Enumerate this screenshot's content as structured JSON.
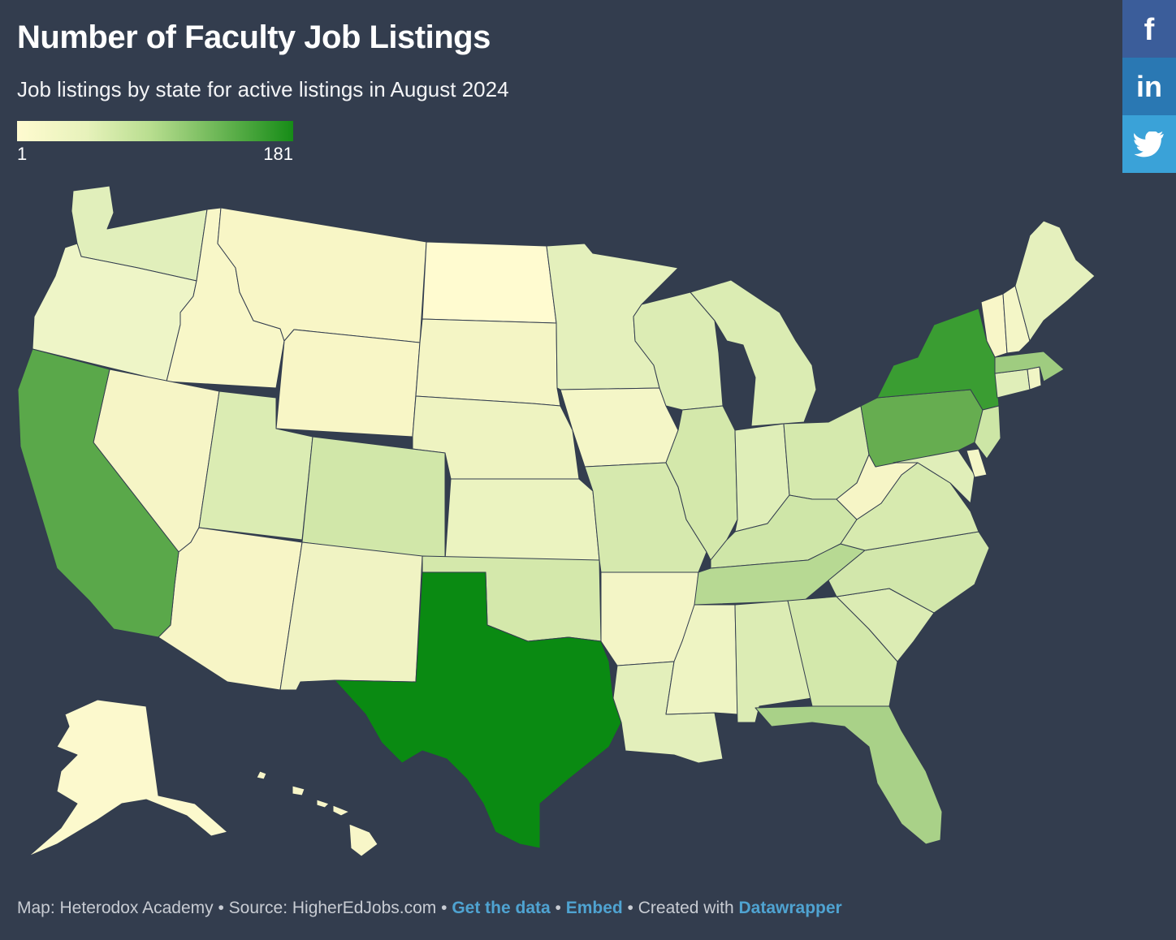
{
  "title": "Number of Faculty Job Listings",
  "subtitle": "Job listings by state for active listings in August 2024",
  "legend": {
    "min_label": "1",
    "max_label": "181",
    "min_value": 1,
    "max_value": 181,
    "color_low": "#fffbd0",
    "color_high": "#168c17"
  },
  "share": {
    "facebook_icon": "facebook-icon",
    "linkedin_icon": "linkedin-icon",
    "twitter_icon": "twitter-icon"
  },
  "footer": {
    "map_credit": "Map: Heterodox Academy",
    "separator": " • ",
    "source": "Source: HigherEdJobs.com",
    "get_data": "Get the data",
    "embed": "Embed",
    "created_with": "Created with",
    "datawrapper": "Datawrapper"
  },
  "chart_data": {
    "type": "choropleth",
    "legend_placement": "top-left",
    "states": [
      {
        "state": "TX",
        "color": "#0a8a12"
      },
      {
        "state": "NY",
        "color": "#3a9d32"
      },
      {
        "state": "CA",
        "color": "#5aa84a"
      },
      {
        "state": "PA",
        "color": "#66ad50"
      },
      {
        "state": "NJ",
        "color": "#cde6a6"
      },
      {
        "state": "MA",
        "color": "#9fcc80"
      },
      {
        "state": "FL",
        "color": "#a9d188"
      },
      {
        "state": "TN",
        "color": "#b7d993"
      },
      {
        "state": "WA",
        "color": "#e1efbb"
      },
      {
        "state": "OR",
        "color": "#eef5c7"
      },
      {
        "state": "ID",
        "color": "#f8f7c8"
      },
      {
        "state": "MT",
        "color": "#f8f6c6"
      },
      {
        "state": "ND",
        "color": "#fffbd0"
      },
      {
        "state": "WY",
        "color": "#f8f6c6"
      },
      {
        "state": "SD",
        "color": "#f4f5c5"
      },
      {
        "state": "NE",
        "color": "#eef3c1"
      },
      {
        "state": "NV",
        "color": "#f6f5c6"
      },
      {
        "state": "UT",
        "color": "#dbecb3"
      },
      {
        "state": "CO",
        "color": "#d1e7a9"
      },
      {
        "state": "KS",
        "color": "#ebf3c0"
      },
      {
        "state": "AZ",
        "color": "#f7f5c6"
      },
      {
        "state": "NM",
        "color": "#f0f3c3"
      },
      {
        "state": "OK",
        "color": "#d4e8ab"
      },
      {
        "state": "MN",
        "color": "#e4f0bc"
      },
      {
        "state": "IA",
        "color": "#f4f6c7"
      },
      {
        "state": "MO",
        "color": "#d6e9ae"
      },
      {
        "state": "AR",
        "color": "#f3f5c6"
      },
      {
        "state": "LA",
        "color": "#e3efbb"
      },
      {
        "state": "WI",
        "color": "#dcecb4"
      },
      {
        "state": "IL",
        "color": "#d4e8ab"
      },
      {
        "state": "MI",
        "color": "#dbecb3"
      },
      {
        "state": "IN",
        "color": "#dfeeb8"
      },
      {
        "state": "OH",
        "color": "#d5e9ad"
      },
      {
        "state": "KY",
        "color": "#cfe6a8"
      },
      {
        "state": "WV",
        "color": "#f6f5c6"
      },
      {
        "state": "VA",
        "color": "#d7eaaf"
      },
      {
        "state": "NC",
        "color": "#d2e7ab"
      },
      {
        "state": "SC",
        "color": "#dcecb4"
      },
      {
        "state": "GA",
        "color": "#d3e8ab"
      },
      {
        "state": "AL",
        "color": "#dcecb4"
      },
      {
        "state": "MS",
        "color": "#eef4c3"
      },
      {
        "state": "ME",
        "color": "#e5f0bd"
      },
      {
        "state": "NH",
        "color": "#f4f6c7"
      },
      {
        "state": "VT",
        "color": "#f8f6c8"
      },
      {
        "state": "CT",
        "color": "#e0eeb9"
      },
      {
        "state": "RI",
        "color": "#f1f5c5"
      },
      {
        "state": "DE",
        "color": "#f4f6c7"
      },
      {
        "state": "MD",
        "color": "#e0eeb9"
      },
      {
        "state": "AK",
        "color": "#fcf9cd"
      },
      {
        "state": "HI",
        "color": "#f8f6c8"
      }
    ]
  }
}
